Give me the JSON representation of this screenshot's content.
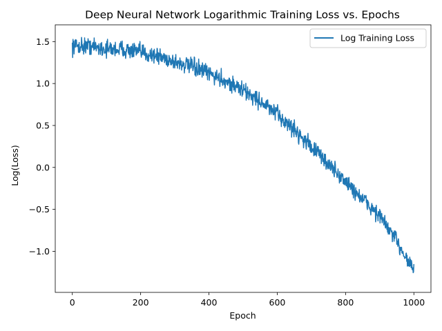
{
  "chart_data": {
    "type": "line",
    "title": "Deep Neural Network Logarithmic Training Loss vs. Epochs",
    "xlabel": "Epoch",
    "ylabel": "Log(Loss)",
    "xlim": [
      -50,
      1050
    ],
    "ylim": [
      -1.49,
      1.7
    ],
    "xticks": [
      0,
      200,
      400,
      600,
      800,
      1000
    ],
    "xtick_labels": [
      "0",
      "200",
      "400",
      "600",
      "800",
      "1000"
    ],
    "yticks": [
      -1.0,
      -0.5,
      0.0,
      0.5,
      1.0,
      1.5
    ],
    "ytick_labels": [
      "−1.0",
      "−0.5",
      "0.0",
      "0.5",
      "1.0",
      "1.5"
    ],
    "grid": false,
    "legend_position": "top-right",
    "series": [
      {
        "name": "Log Training Loss",
        "color": "#1f77b4",
        "noise_amplitude": 0.05,
        "x": [
          0,
          50,
          100,
          150,
          200,
          250,
          300,
          350,
          400,
          450,
          500,
          550,
          600,
          650,
          700,
          750,
          800,
          850,
          900,
          950,
          1000
        ],
        "y": [
          1.45,
          1.45,
          1.41,
          1.41,
          1.37,
          1.33,
          1.26,
          1.2,
          1.12,
          1.03,
          0.92,
          0.79,
          0.63,
          0.45,
          0.25,
          0.04,
          -0.17,
          -0.38,
          -0.58,
          -0.88,
          -1.22
        ]
      }
    ]
  }
}
